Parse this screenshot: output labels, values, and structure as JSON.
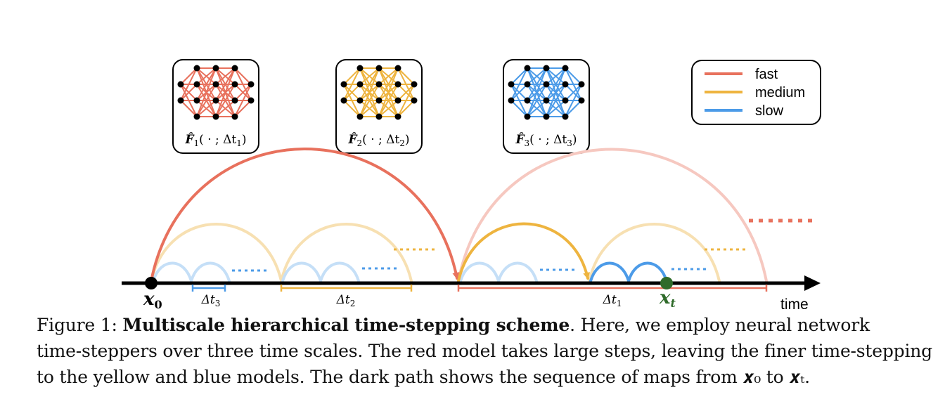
{
  "colors": {
    "fast": "#e8715d",
    "medium": "#eeb43f",
    "slow": "#4c9be8",
    "fast_light": "#f6c8c0",
    "medium_light": "#f7e0b2",
    "slow_light": "#c5dff7",
    "xt": "#2f6b2a",
    "axis": "#000000"
  },
  "networks": [
    {
      "color_key": "fast",
      "label_f": "F̂",
      "label_sub": "1",
      "label_args": "( · ; Δt",
      "label_args_sub": "1",
      "label_close": ")"
    },
    {
      "color_key": "medium",
      "label_f": "F̂",
      "label_sub": "2",
      "label_args": "( · ; Δt",
      "label_args_sub": "2",
      "label_close": ")"
    },
    {
      "color_key": "slow",
      "label_f": "F̂",
      "label_sub": "3",
      "label_args": "( · ; Δt",
      "label_args_sub": "3",
      "label_close": ")"
    }
  ],
  "legend": [
    {
      "label": "fast",
      "color_key": "fast"
    },
    {
      "label": "medium",
      "color_key": "medium"
    },
    {
      "label": "slow",
      "color_key": "slow"
    }
  ],
  "axis": {
    "start_label": "x",
    "start_sub": "0",
    "end_label": "x",
    "end_sub": "t",
    "time_label": "time"
  },
  "intervals": {
    "dt3": {
      "label": "Δt",
      "sub": "3"
    },
    "dt2": {
      "label": "Δt",
      "sub": "2"
    },
    "dt1": {
      "label": "Δt",
      "sub": "1"
    }
  },
  "caption": {
    "prefix": "Figure 1: ",
    "title": "Multiscale hierarchical time-stepping scheme",
    "line1_rest": ". Here, we employ neural network",
    "line2": "time-steppers over three time scales. The red model takes large steps, leaving the finer time-stepping",
    "line3": "to the yellow and blue models. The dark path shows the sequence of maps from 𝒙₀ to 𝒙ₜ."
  }
}
